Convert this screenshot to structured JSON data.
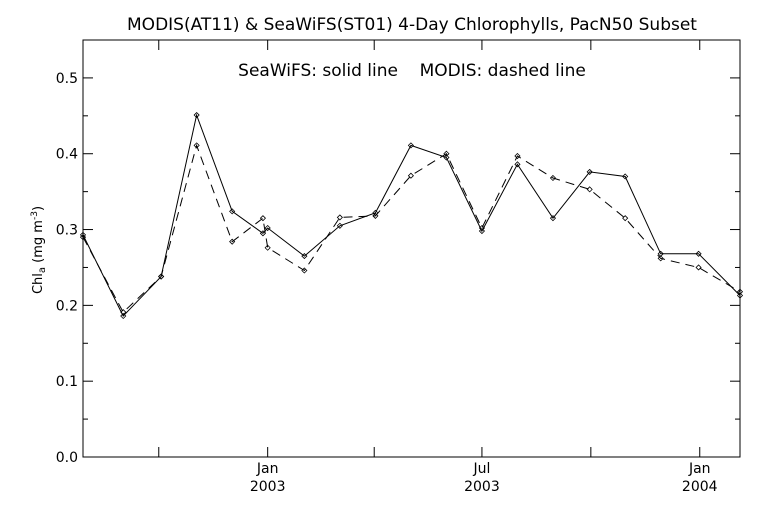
{
  "chart_data": {
    "type": "line",
    "title": "MODIS(AT11) & SeaWiFS(ST01) 4-Day Chlorophylls, PacN50 Subset",
    "annotation": "SeaWiFS: solid line    MODIS: dashed line",
    "ylabel": {
      "main": "Chl",
      "sub": "a",
      "unit_pre": " (mg m",
      "unit_sup": "-3",
      "unit_post": ")"
    },
    "ylim": [
      0,
      0.55
    ],
    "yticks": [
      "0.0",
      "0.1",
      "0.2",
      "0.3",
      "0.4",
      "0.5"
    ],
    "ytick_values": [
      0,
      0.1,
      0.2,
      0.3,
      0.4,
      0.5
    ],
    "xlim": [
      "2002-07-29",
      "2004-02-04"
    ],
    "xtick_labels": [
      {
        "date": "2003-01-01",
        "line1": "Jan",
        "line2": "2003"
      },
      {
        "date": "2003-07-01",
        "line1": "Jul",
        "line2": "2003"
      },
      {
        "date": "2004-01-01",
        "line1": "Jan",
        "line2": "2004"
      }
    ],
    "x_minor_ticks": [
      "2002-10-01",
      "2003-04-01",
      "2003-10-01"
    ],
    "series": [
      {
        "name": "SeaWiFS",
        "style": "solid",
        "color": "#000000",
        "x": [
          "2002-07-29",
          "2002-09-01",
          "2002-10-03",
          "2002-11-02",
          "2002-12-02",
          "2002-12-28",
          "2003-01-01",
          "2003-02-01",
          "2003-03-03",
          "2003-04-02",
          "2003-05-02",
          "2003-06-01",
          "2003-07-01",
          "2003-07-31",
          "2003-08-30",
          "2003-09-30",
          "2003-10-30",
          "2003-11-29",
          "2003-12-31",
          "2004-02-04"
        ],
        "y": [
          0.293,
          0.186,
          0.238,
          0.451,
          0.324,
          0.295,
          0.302,
          0.265,
          0.305,
          0.322,
          0.411,
          0.395,
          0.298,
          0.386,
          0.315,
          0.376,
          0.37,
          0.268,
          0.268,
          0.213
        ]
      },
      {
        "name": "MODIS",
        "style": "dashed",
        "color": "#000000",
        "x": [
          "2002-07-29",
          "2002-09-01",
          "2002-10-03",
          "2002-11-02",
          "2002-12-02",
          "2002-12-28",
          "2003-01-01",
          "2003-02-01",
          "2003-03-03",
          "2003-04-02",
          "2003-05-02",
          "2003-06-01",
          "2003-07-01",
          "2003-07-31",
          "2003-08-30",
          "2003-09-30",
          "2003-10-30",
          "2003-11-29",
          "2003-12-31",
          "2004-02-04"
        ],
        "y": [
          0.29,
          0.191,
          0.238,
          0.411,
          0.284,
          0.315,
          0.276,
          0.246,
          0.316,
          0.318,
          0.371,
          0.4,
          0.302,
          0.397,
          0.368,
          0.353,
          0.315,
          0.262,
          0.25,
          0.218
        ]
      }
    ]
  }
}
